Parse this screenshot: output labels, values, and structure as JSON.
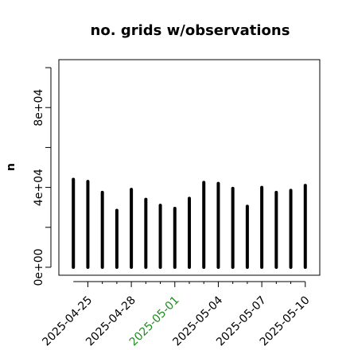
{
  "chart_data": {
    "type": "bar",
    "title": "no. grids w/observations",
    "xlabel": "",
    "ylabel": "n",
    "x_tick_labels": [
      {
        "label": "2025-04-25",
        "color": "#000000"
      },
      {
        "label": "2025-04-28",
        "color": "#000000"
      },
      {
        "label": "2025-05-01",
        "color": "#228B22"
      },
      {
        "label": "2025-05-04",
        "color": "#000000"
      },
      {
        "label": "2025-05-07",
        "color": "#000000"
      },
      {
        "label": "2025-05-10",
        "color": "#000000"
      }
    ],
    "y_tick_labels": [
      "0e+00",
      "4e+04",
      "8e+04"
    ],
    "categories": [
      "2025-04-24",
      "2025-04-25",
      "2025-04-26",
      "2025-04-27",
      "2025-04-28",
      "2025-04-29",
      "2025-04-30",
      "2025-05-01",
      "2025-05-02",
      "2025-05-03",
      "2025-05-04",
      "2025-05-05",
      "2025-05-06",
      "2025-05-07",
      "2025-05-08",
      "2025-05-09",
      "2025-05-10"
    ],
    "values": [
      44000,
      43000,
      37500,
      28500,
      39000,
      34000,
      31000,
      29500,
      34500,
      42500,
      42000,
      39500,
      30500,
      40000,
      37500,
      38500,
      41000
    ],
    "xlim": [
      "2025-04-23",
      "2025-05-11"
    ],
    "ylim": [
      -4000,
      104000
    ],
    "y_ticks": [
      0,
      20000,
      40000,
      60000,
      80000,
      100000
    ],
    "grid": false,
    "bar_color": "#000000"
  }
}
